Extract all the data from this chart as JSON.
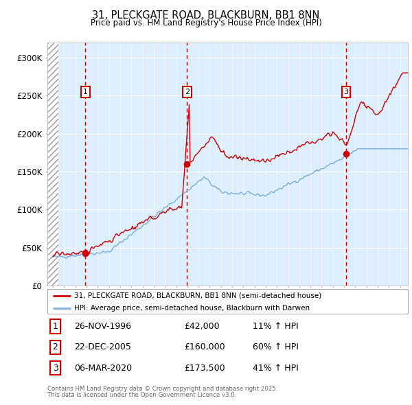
{
  "title1": "31, PLECKGATE ROAD, BLACKBURN, BB1 8NN",
  "title2": "Price paid vs. HM Land Registry's House Price Index (HPI)",
  "legend_line1": "31, PLECKGATE ROAD, BLACKBURN, BB1 8NN (semi-detached house)",
  "legend_line2": "HPI: Average price, semi-detached house, Blackburn with Darwen",
  "sale_color": "#cc0000",
  "hpi_color": "#7aaddb",
  "vline_color": "#cc0000",
  "background_color": "#ddeeff",
  "grid_color": "#ffffff",
  "sale_dates": [
    1996.9,
    2005.97,
    2020.18
  ],
  "sale_prices": [
    42000,
    160000,
    173500
  ],
  "sale_labels": [
    "1",
    "2",
    "3"
  ],
  "footnote1": "Contains HM Land Registry data © Crown copyright and database right 2025.",
  "footnote2": "This data is licensed under the Open Government Licence v3.0.",
  "table_rows": [
    [
      "1",
      "26-NOV-1996",
      "£42,000",
      "11% ↑ HPI"
    ],
    [
      "2",
      "22-DEC-2005",
      "£160,000",
      "60% ↑ HPI"
    ],
    [
      "3",
      "06-MAR-2020",
      "£173,500",
      "41% ↑ HPI"
    ]
  ],
  "ylim": [
    0,
    320000
  ],
  "xlim_start": 1993.5,
  "xlim_end": 2025.7,
  "hatch_end": 1994.5
}
